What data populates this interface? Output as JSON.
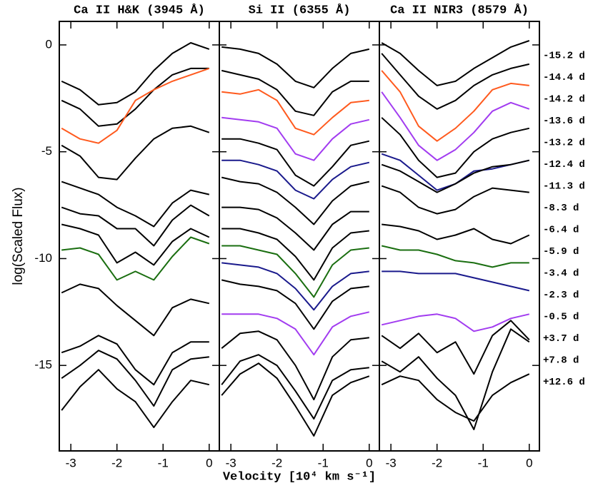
{
  "chart_data": [
    {
      "type": "line",
      "title": "Ca II H&K (3945 Å)",
      "x": [
        -3.2,
        -2.8,
        -2.4,
        -2.0,
        -1.6,
        -1.2,
        -0.8,
        -0.4,
        0.0
      ],
      "xlim": [
        -3.25,
        0.22
      ],
      "xticks": [
        -3,
        -2,
        -1,
        0
      ],
      "ylim": [
        -19,
        1.1
      ],
      "yticks": [
        0,
        -5,
        -10,
        -15
      ],
      "series": [
        {
          "color": "#000000",
          "values": [
            -1.7,
            -2.1,
            -2.8,
            -2.7,
            -2.2,
            -1.2,
            -0.4,
            0.1,
            -0.2
          ]
        },
        {
          "color": "#000000",
          "values": [
            -2.6,
            -3.0,
            -3.8,
            -3.7,
            -3.0,
            -2.1,
            -1.4,
            -1.1,
            -1.1
          ]
        },
        {
          "color": "#ff5a1e",
          "values": [
            -3.9,
            -4.4,
            -4.6,
            -4.0,
            -2.6,
            -2.1,
            -1.7,
            -1.4,
            -1.1
          ]
        },
        {
          "color": "#000000",
          "values": [
            -4.7,
            -5.2,
            -6.2,
            -6.3,
            -5.3,
            -4.4,
            -3.9,
            -3.8,
            -4.1
          ]
        },
        {
          "color": "#000000",
          "values": [
            -6.4,
            -6.7,
            -7.0,
            -7.6,
            -8.0,
            -8.5,
            -7.4,
            -6.8,
            -7.0
          ]
        },
        {
          "color": "#000000",
          "values": [
            -7.6,
            -7.9,
            -8.0,
            -8.6,
            -8.6,
            -9.4,
            -8.2,
            -7.5,
            -8.0
          ]
        },
        {
          "color": "#000000",
          "values": [
            -8.4,
            -8.6,
            -8.9,
            -10.2,
            -9.7,
            -10.3,
            -9.2,
            -8.6,
            -9.0
          ]
        },
        {
          "color": "#1a6e10",
          "values": [
            -9.6,
            -9.5,
            -9.8,
            -11.0,
            -10.6,
            -11.0,
            -9.9,
            -9.0,
            -9.3
          ]
        },
        {
          "color": "#000000",
          "values": [
            -11.6,
            -11.2,
            -11.4,
            -12.2,
            -12.9,
            -13.6,
            -12.3,
            -11.9,
            -12.1
          ]
        },
        {
          "color": "#000000",
          "values": [
            -14.4,
            -14.1,
            -13.6,
            -14.0,
            -15.2,
            -15.9,
            -14.4,
            -13.9,
            -13.9
          ]
        },
        {
          "color": "#000000",
          "values": [
            -15.6,
            -15.0,
            -14.3,
            -14.7,
            -15.7,
            -16.9,
            -15.2,
            -14.7,
            -14.6
          ]
        },
        {
          "color": "#000000",
          "values": [
            -17.1,
            -16.0,
            -15.2,
            -16.1,
            -16.7,
            -17.9,
            -16.7,
            -15.7,
            -15.9
          ]
        }
      ]
    },
    {
      "type": "line",
      "title": "Si II (6355 Å)",
      "x": [
        -3.2,
        -2.8,
        -2.4,
        -2.0,
        -1.6,
        -1.2,
        -0.8,
        -0.4,
        0.0
      ],
      "xlim": [
        -3.25,
        0.22
      ],
      "xticks": [
        -3,
        -2,
        -1,
        0
      ],
      "ylim": [
        -19,
        1.1
      ],
      "series": [
        {
          "color": "#000000",
          "values": [
            -0.1,
            -0.2,
            -0.4,
            -0.9,
            -1.7,
            -2.0,
            -1.1,
            -0.4,
            -0.2
          ]
        },
        {
          "color": "#000000",
          "values": [
            -1.2,
            -1.4,
            -1.6,
            -2.1,
            -3.1,
            -3.3,
            -2.2,
            -1.7,
            -1.7
          ]
        },
        {
          "color": "#ff5a1e",
          "values": [
            -2.2,
            -2.3,
            -2.1,
            -2.6,
            -3.9,
            -4.2,
            -3.4,
            -2.7,
            -2.6
          ]
        },
        {
          "color": "#a23cf0",
          "values": [
            -3.4,
            -3.5,
            -3.6,
            -3.9,
            -5.1,
            -5.4,
            -4.4,
            -3.7,
            -3.5
          ]
        },
        {
          "color": "#000000",
          "values": [
            -4.4,
            -4.4,
            -4.6,
            -4.9,
            -6.1,
            -6.6,
            -5.7,
            -4.7,
            -4.5
          ]
        },
        {
          "color": "#1a1a8c",
          "values": [
            -5.4,
            -5.4,
            -5.6,
            -5.9,
            -6.8,
            -7.2,
            -6.3,
            -5.7,
            -5.5
          ]
        },
        {
          "color": "#000000",
          "values": [
            -6.2,
            -6.4,
            -6.5,
            -6.9,
            -7.6,
            -8.4,
            -7.3,
            -6.6,
            -6.4
          ]
        },
        {
          "color": "#000000",
          "values": [
            -7.6,
            -7.6,
            -7.7,
            -8.1,
            -8.8,
            -9.6,
            -8.4,
            -7.8,
            -7.8
          ]
        },
        {
          "color": "#000000",
          "values": [
            -8.6,
            -8.6,
            -8.8,
            -9.1,
            -9.9,
            -11.0,
            -9.5,
            -8.8,
            -8.7
          ]
        },
        {
          "color": "#1a6e10",
          "values": [
            -9.4,
            -9.4,
            -9.6,
            -9.8,
            -10.7,
            -11.8,
            -10.3,
            -9.6,
            -9.5
          ]
        },
        {
          "color": "#1a1a8c",
          "values": [
            -10.2,
            -10.3,
            -10.4,
            -10.7,
            -11.4,
            -12.4,
            -11.3,
            -10.7,
            -10.6
          ]
        },
        {
          "color": "#000000",
          "values": [
            -11.0,
            -11.2,
            -11.3,
            -11.5,
            -12.1,
            -13.3,
            -12.0,
            -11.4,
            -11.3
          ]
        },
        {
          "color": "#a23cf0",
          "values": [
            -12.6,
            -12.6,
            -12.6,
            -12.8,
            -13.3,
            -14.5,
            -13.2,
            -12.7,
            -12.5
          ]
        },
        {
          "color": "#000000",
          "values": [
            -14.2,
            -13.5,
            -13.4,
            -13.8,
            -15.0,
            -16.6,
            -14.6,
            -13.8,
            -13.7
          ]
        },
        {
          "color": "#000000",
          "values": [
            -15.9,
            -14.8,
            -14.5,
            -15.0,
            -16.2,
            -17.5,
            -15.7,
            -15.2,
            -15.1
          ]
        },
        {
          "color": "#000000",
          "values": [
            -16.4,
            -15.4,
            -14.9,
            -15.6,
            -16.9,
            -18.3,
            -16.4,
            -15.8,
            -15.5
          ]
        }
      ]
    },
    {
      "type": "line",
      "title": "Ca II NIR3 (8579 Å)",
      "x": [
        -3.2,
        -2.8,
        -2.4,
        -2.0,
        -1.6,
        -1.2,
        -0.8,
        -0.4,
        0.0
      ],
      "xlim": [
        -3.25,
        0.22
      ],
      "xticks": [
        -3,
        -2,
        -1,
        0
      ],
      "ylim": [
        -19,
        1.1
      ],
      "series": [
        {
          "color": "#000000",
          "values": [
            0.1,
            -0.4,
            -1.2,
            -1.9,
            -1.7,
            -1.1,
            -0.6,
            -0.1,
            0.2
          ]
        },
        {
          "color": "#000000",
          "values": [
            -0.4,
            -1.4,
            -2.4,
            -3.0,
            -2.6,
            -1.9,
            -1.4,
            -1.1,
            -0.9
          ]
        },
        {
          "color": "#ff5a1e",
          "values": [
            -1.2,
            -2.2,
            -3.8,
            -4.5,
            -3.9,
            -3.1,
            -2.1,
            -1.8,
            -1.9
          ]
        },
        {
          "color": "#a23cf0",
          "values": [
            -2.2,
            -3.4,
            -4.7,
            -5.4,
            -4.9,
            -4.1,
            -3.1,
            -2.7,
            -3.0
          ]
        },
        {
          "color": "#000000",
          "values": [
            -3.4,
            -4.2,
            -5.4,
            -6.2,
            -6.0,
            -5.0,
            -4.4,
            -4.1,
            -3.9
          ]
        },
        {
          "color": "#1a1a8c",
          "values": [
            -5.1,
            -5.4,
            -6.1,
            -6.8,
            -6.5,
            -5.9,
            -5.8,
            -5.6,
            -5.4
          ]
        },
        {
          "color": "#000000",
          "values": [
            -5.6,
            -5.9,
            -6.4,
            -6.9,
            -6.5,
            -6.0,
            -5.7,
            -5.6,
            -5.4
          ]
        },
        {
          "color": "#000000",
          "values": [
            -6.6,
            -6.9,
            -7.6,
            -7.9,
            -7.7,
            -7.1,
            -6.7,
            -6.8,
            -6.9
          ]
        },
        {
          "color": "#000000",
          "values": [
            -8.4,
            -8.5,
            -8.7,
            -9.1,
            -8.9,
            -8.6,
            -9.1,
            -9.3,
            -8.9
          ]
        },
        {
          "color": "#1a6e10",
          "values": [
            -9.4,
            -9.6,
            -9.6,
            -9.8,
            -10.1,
            -10.2,
            -10.4,
            -10.2,
            -10.2
          ]
        },
        {
          "color": "#1a1a8c",
          "values": [
            -10.6,
            -10.6,
            -10.7,
            -10.7,
            -10.7,
            -10.9,
            -11.1,
            -11.3,
            -11.5
          ]
        },
        {
          "color": "#a23cf0",
          "values": [
            -13.1,
            -12.9,
            -12.7,
            -12.6,
            -12.8,
            -13.4,
            -13.2,
            -12.8,
            -12.6
          ]
        },
        {
          "color": "#000000",
          "values": [
            -13.6,
            -14.2,
            -13.5,
            -14.4,
            -13.9,
            -15.4,
            -13.6,
            -12.9,
            -13.8
          ]
        },
        {
          "color": "#000000",
          "values": [
            -14.8,
            -15.3,
            -14.6,
            -15.6,
            -16.4,
            -18.0,
            -15.3,
            -13.3,
            -13.9
          ]
        },
        {
          "color": "#000000",
          "values": [
            -15.9,
            -15.5,
            -15.7,
            -16.6,
            -17.2,
            -17.6,
            -16.4,
            -15.8,
            -15.4
          ]
        }
      ]
    }
  ],
  "xlabel": "Velocity [10⁴ km s⁻¹]",
  "ylabel": "log(Scaled Flux)",
  "epochs": [
    {
      "label": "-15.2 d",
      "color": "#000000"
    },
    {
      "label": "-14.4 d",
      "color": "#000000"
    },
    {
      "label": "-14.2 d",
      "color": "#ff5a1e"
    },
    {
      "label": "-13.6 d",
      "color": "#a23cf0"
    },
    {
      "label": "-13.2 d",
      "color": "#000000"
    },
    {
      "label": "-12.4 d",
      "color": "#1a1a8c"
    },
    {
      "label": "-11.3 d",
      "color": "#000000"
    },
    {
      "label": "-8.3 d",
      "color": "#000000"
    },
    {
      "label": "-6.4 d",
      "color": "#000000"
    },
    {
      "label": "-5.9 d",
      "color": "#1a6e10"
    },
    {
      "label": "-3.4 d",
      "color": "#1a1a8c"
    },
    {
      "label": "-2.3 d",
      "color": "#000000"
    },
    {
      "label": "-0.5 d",
      "color": "#a23cf0"
    },
    {
      "label": "+3.7 d",
      "color": "#000000"
    },
    {
      "label": "+7.8 d",
      "color": "#000000"
    },
    {
      "label": "+12.6 d",
      "color": "#000000"
    }
  ]
}
